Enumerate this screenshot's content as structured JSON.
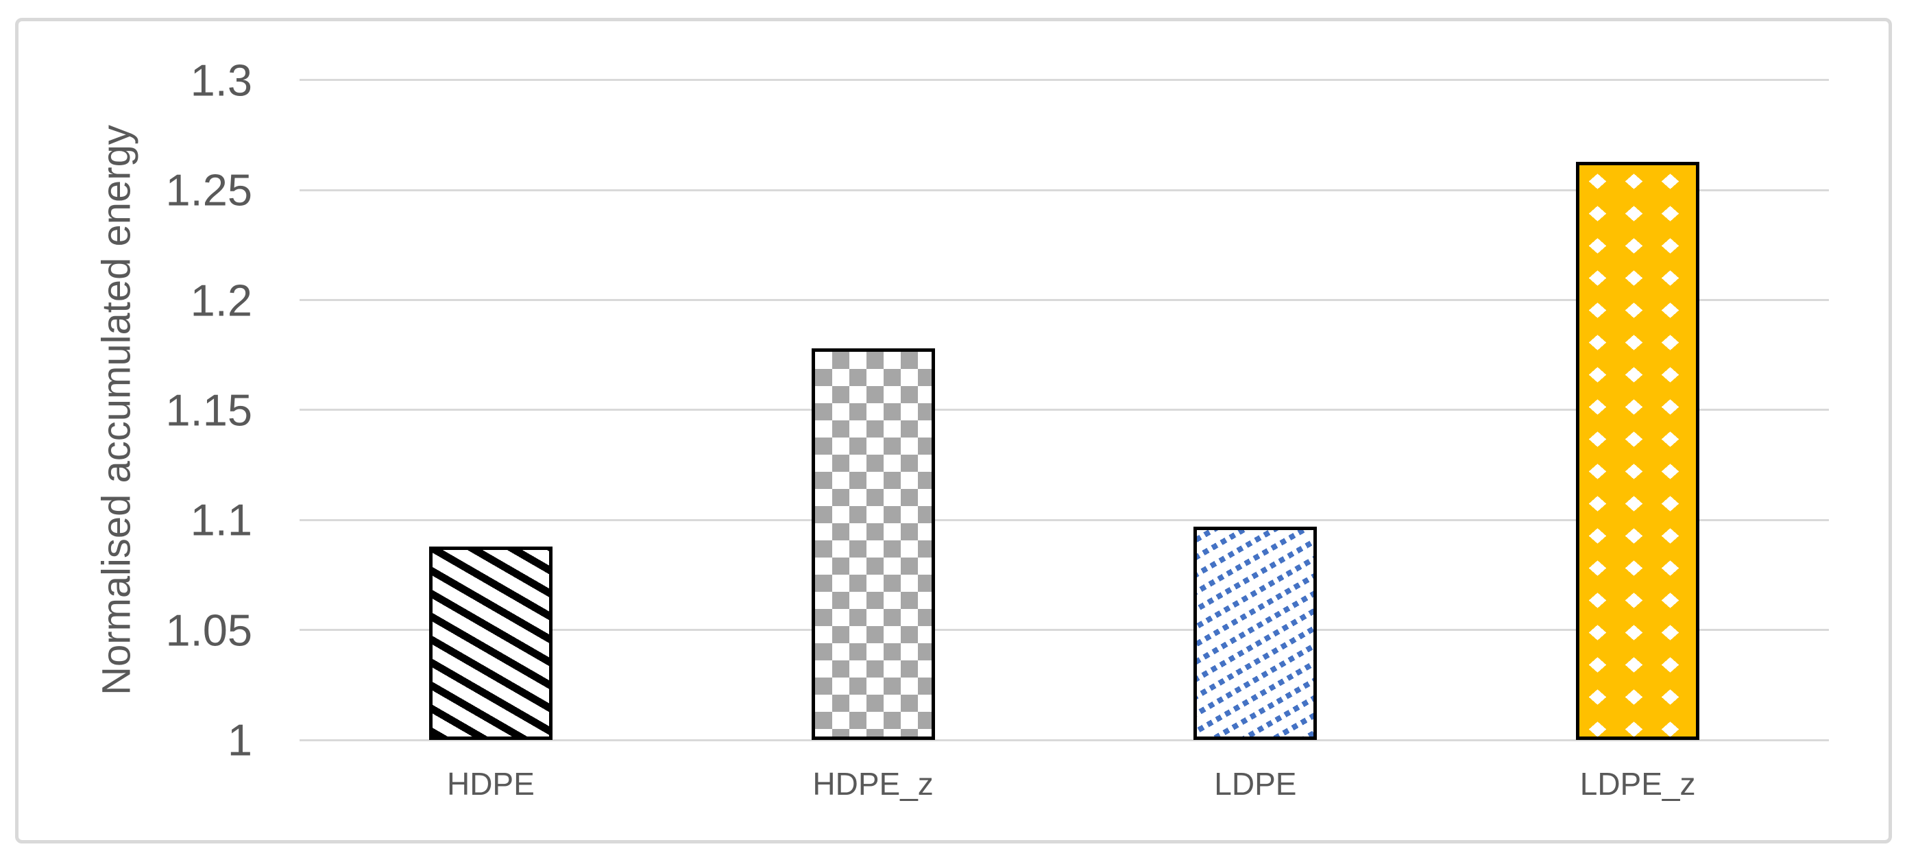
{
  "chart_data": {
    "type": "bar",
    "title": "",
    "xlabel": "",
    "ylabel": "Normalised accumulated energy",
    "categories": [
      "HDPE",
      "HDPE_z",
      "LDPE",
      "LDPE_z"
    ],
    "values": [
      1.088,
      1.178,
      1.097,
      1.263
    ],
    "ylim": [
      1.0,
      1.3
    ],
    "ytick_values": [
      1,
      1.05,
      1.1,
      1.15,
      1.2,
      1.25,
      1.3
    ],
    "ytick_labels": [
      "1",
      "1.05",
      "1.1",
      "1.15",
      "1.2",
      "1.25",
      "1.3"
    ],
    "grid": true,
    "legend": false,
    "bars": [
      {
        "category": "HDPE",
        "value": 1.088,
        "pattern": "black-diagonal-stripes-down"
      },
      {
        "category": "HDPE_z",
        "value": 1.178,
        "pattern": "gray-checkerboard"
      },
      {
        "category": "LDPE",
        "value": 1.097,
        "pattern": "blue-dotted-diagonal-up"
      },
      {
        "category": "LDPE_z",
        "value": 1.263,
        "pattern": "gold-diamond-checker"
      }
    ]
  },
  "colors": {
    "stripe_black": "#000000",
    "checker_gray": "#A6A6A6",
    "dot_blue": "#4472C4",
    "diamond_gold": "#FFC000",
    "bar_border": "#000000",
    "gridline": "#D9D9D9",
    "frame_border": "#D9D9D9",
    "axis_text": "#595959",
    "background": "#FFFFFF"
  }
}
